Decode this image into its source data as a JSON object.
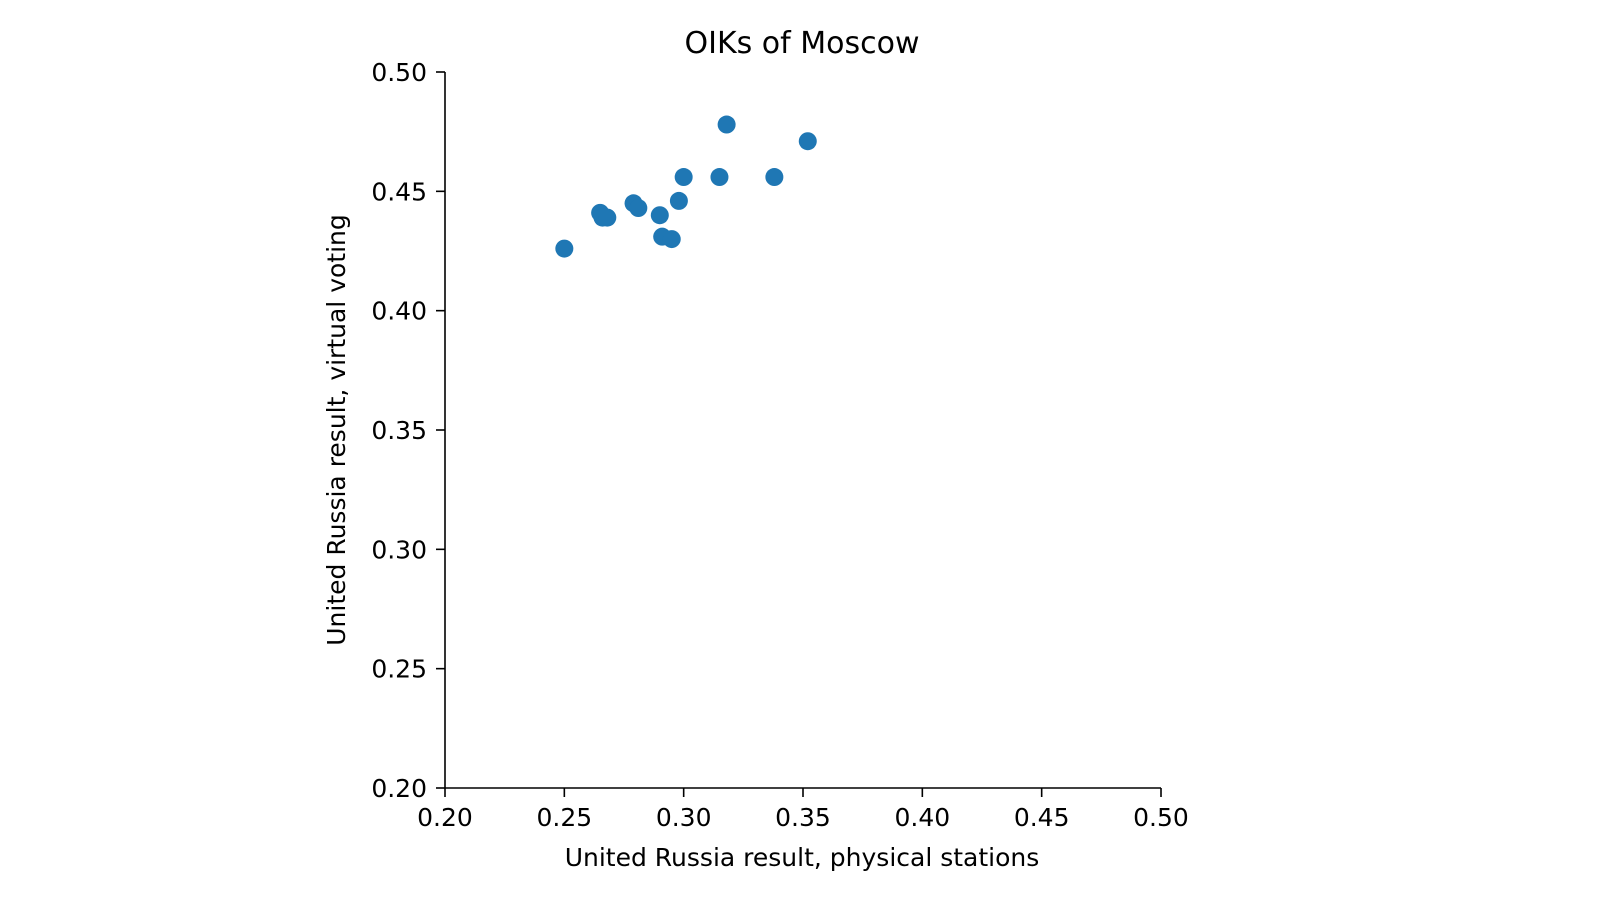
{
  "chart_data": {
    "type": "scatter",
    "title": "OIKs of Moscow",
    "xlabel": "United Russia result, physical stations",
    "ylabel": "United Russia result, virtual voting",
    "xlim": [
      0.2,
      0.5
    ],
    "ylim": [
      0.2,
      0.5
    ],
    "xticks": [
      "0.20",
      "0.25",
      "0.30",
      "0.35",
      "0.40",
      "0.45",
      "0.50"
    ],
    "yticks": [
      "0.20",
      "0.25",
      "0.30",
      "0.35",
      "0.40",
      "0.45",
      "0.50"
    ],
    "grid": false,
    "series": [
      {
        "color": "#1f77b4",
        "points": [
          {
            "x": 0.25,
            "y": 0.426
          },
          {
            "x": 0.265,
            "y": 0.441
          },
          {
            "x": 0.266,
            "y": 0.439
          },
          {
            "x": 0.268,
            "y": 0.439
          },
          {
            "x": 0.279,
            "y": 0.445
          },
          {
            "x": 0.281,
            "y": 0.443
          },
          {
            "x": 0.29,
            "y": 0.44
          },
          {
            "x": 0.291,
            "y": 0.431
          },
          {
            "x": 0.295,
            "y": 0.43
          },
          {
            "x": 0.298,
            "y": 0.446
          },
          {
            "x": 0.3,
            "y": 0.456
          },
          {
            "x": 0.315,
            "y": 0.456
          },
          {
            "x": 0.318,
            "y": 0.478
          },
          {
            "x": 0.338,
            "y": 0.456
          },
          {
            "x": 0.352,
            "y": 0.471
          }
        ]
      }
    ]
  }
}
